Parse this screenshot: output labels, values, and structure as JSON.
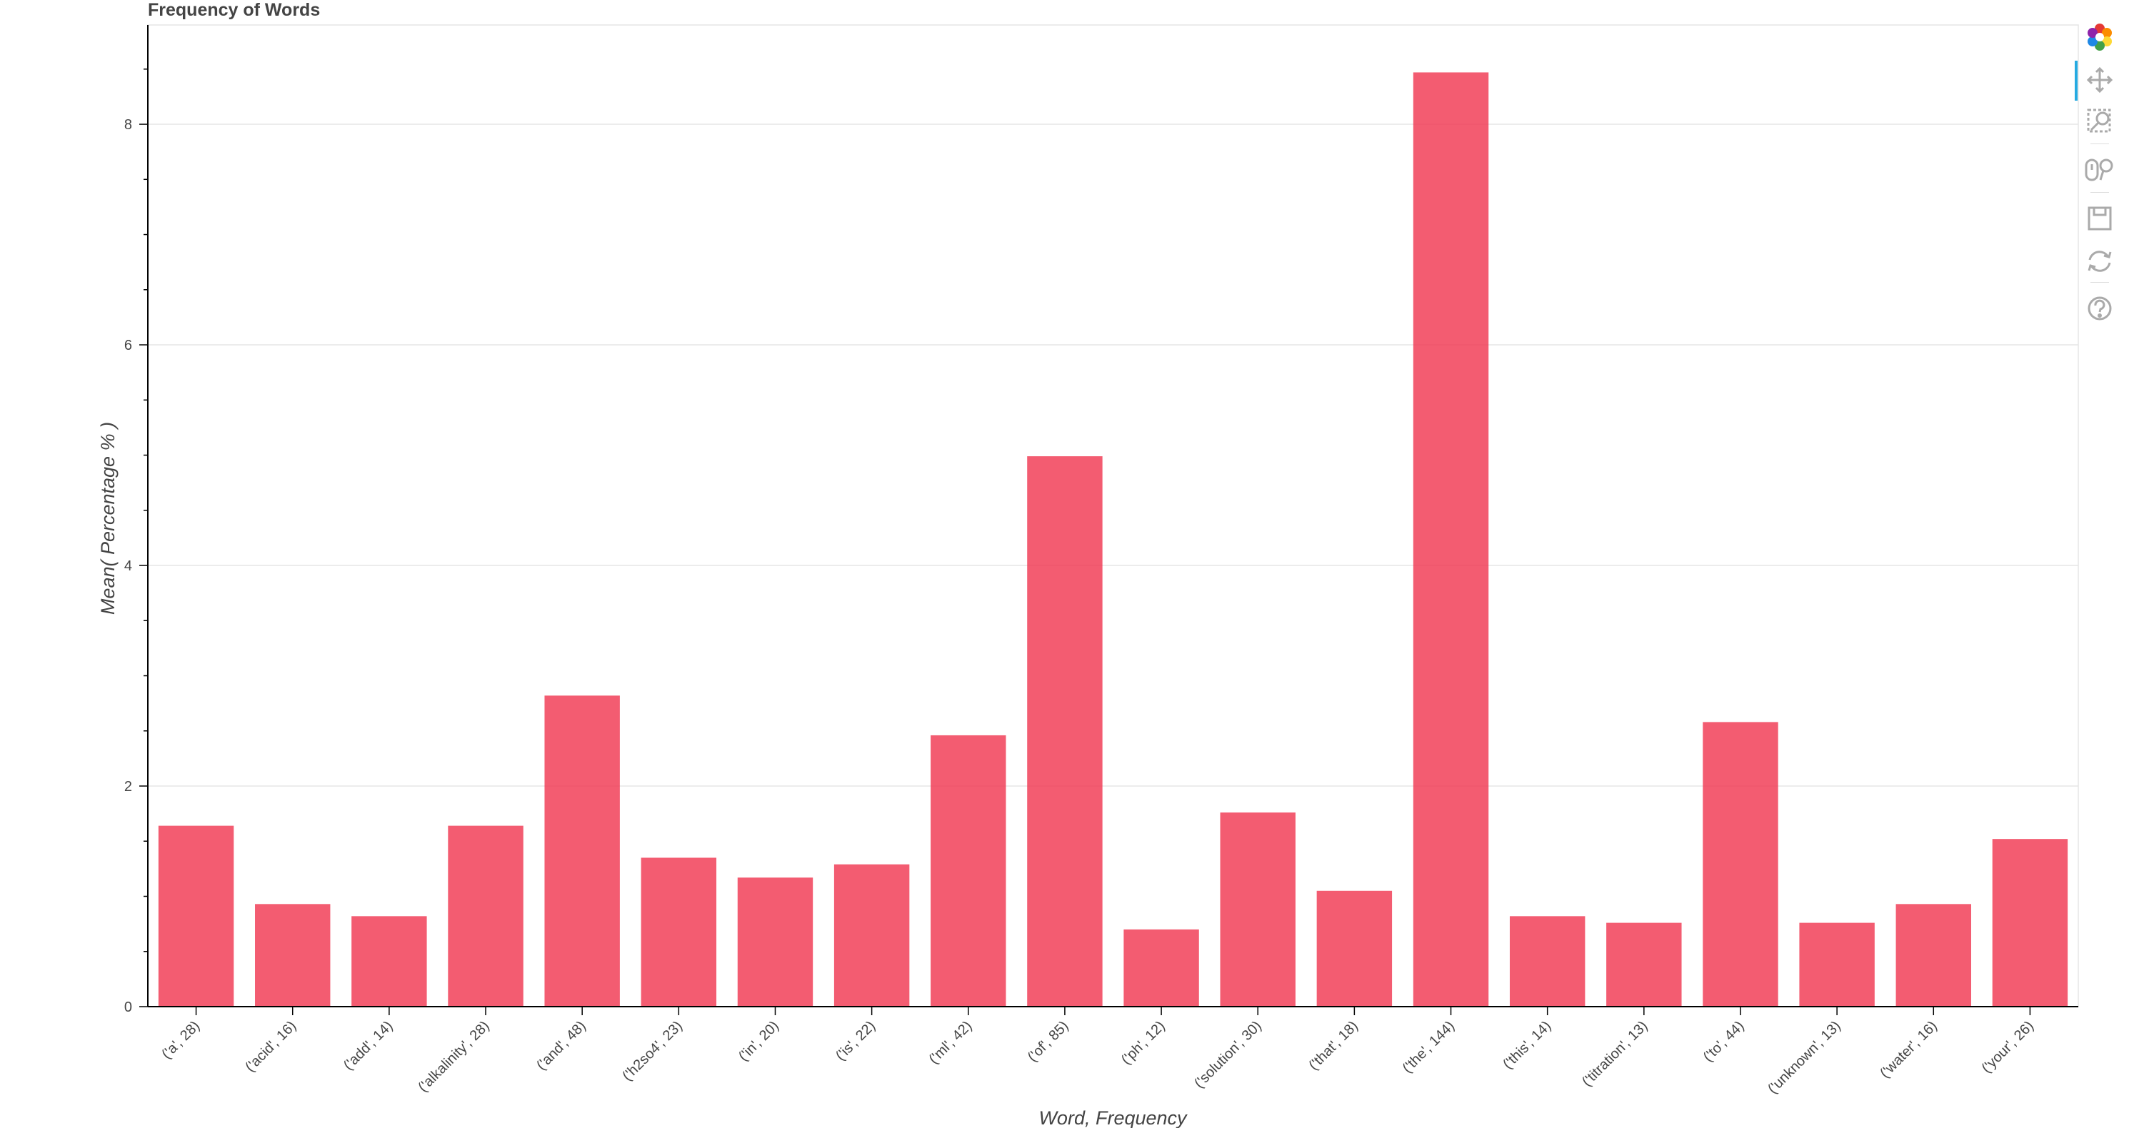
{
  "chart_data": {
    "type": "bar",
    "title": "Frequency of Words",
    "xlabel": "Word, Frequency",
    "ylabel": "Mean( Percentage % )",
    "ylim": [
      0,
      8.9
    ],
    "yticks": [
      0,
      2,
      4,
      6,
      8
    ],
    "grid": "horizontal",
    "bar_color": "#f0334d",
    "bar_alpha": 0.8,
    "categories": [
      "('a', 28)",
      "('acid', 16)",
      "('add', 14)",
      "('alkalinity', 28)",
      "('and', 48)",
      "('h2so4', 23)",
      "('in', 20)",
      "('is', 22)",
      "('ml', 42)",
      "('of', 85)",
      "('ph', 12)",
      "('solution', 30)",
      "('that', 18)",
      "('the', 144)",
      "('this', 14)",
      "('titration', 13)",
      "('to', 44)",
      "('unknown', 13)",
      "('water', 16)",
      "('your', 26)"
    ],
    "values": [
      1.64,
      0.93,
      0.82,
      1.64,
      2.82,
      1.35,
      1.17,
      1.29,
      2.46,
      4.99,
      0.7,
      1.76,
      1.05,
      8.47,
      0.82,
      0.76,
      2.58,
      0.76,
      0.93,
      1.52
    ]
  },
  "toolbar": {
    "tools": [
      "bokeh-logo-icon",
      "pan-icon",
      "box-zoom-icon",
      "wheel-zoom-icon",
      "save-icon",
      "reset-icon",
      "help-icon"
    ],
    "active": "pan-icon",
    "active_color": "#26aae1",
    "icon_color": "#aaaaaa"
  }
}
